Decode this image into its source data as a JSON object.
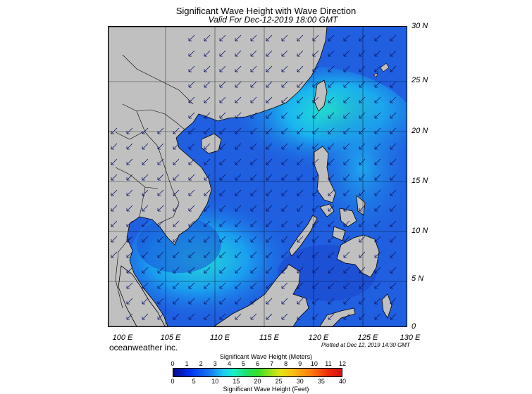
{
  "title": "Significant Wave Height with Wave Direction",
  "subtitle": "Valid For Dec-12-2019 18:00 GMT",
  "map": {
    "lat_labels": [
      "30 N",
      "25 N",
      "20 N",
      "15 N",
      "10 N",
      "5 N",
      "0"
    ],
    "lon_labels": [
      "100 E",
      "105 E",
      "110 E",
      "115 E",
      "120 E",
      "125 E",
      "130 E"
    ],
    "extent": {
      "lon_min": 99,
      "lon_max": 130,
      "lat_min": 0,
      "lat_max": 30
    },
    "colors": {
      "land": "#c0c0c0",
      "sea_deep": "#1f4fe0",
      "sea_mid": "#1a8cf0",
      "sea_high": "#1ef0c8",
      "arrow": "#0a1466",
      "border": "#000000"
    },
    "wave_direction": "from north-east"
  },
  "credit": "oceanweather inc.",
  "plotted": "Plotted at Dec 12, 2019 14:30 GMT",
  "colorbar": {
    "meters_title": "Significant Wave Height (Meters)",
    "feet_title": "Significant Wave Height (Feet)",
    "meter_ticks": [
      "0",
      "1",
      "2",
      "3",
      "4",
      "5",
      "6",
      "7",
      "8",
      "9",
      "10",
      "11",
      "12"
    ],
    "feet_ticks": [
      "0",
      "5",
      "10",
      "15",
      "20",
      "25",
      "30",
      "35",
      "40"
    ]
  }
}
